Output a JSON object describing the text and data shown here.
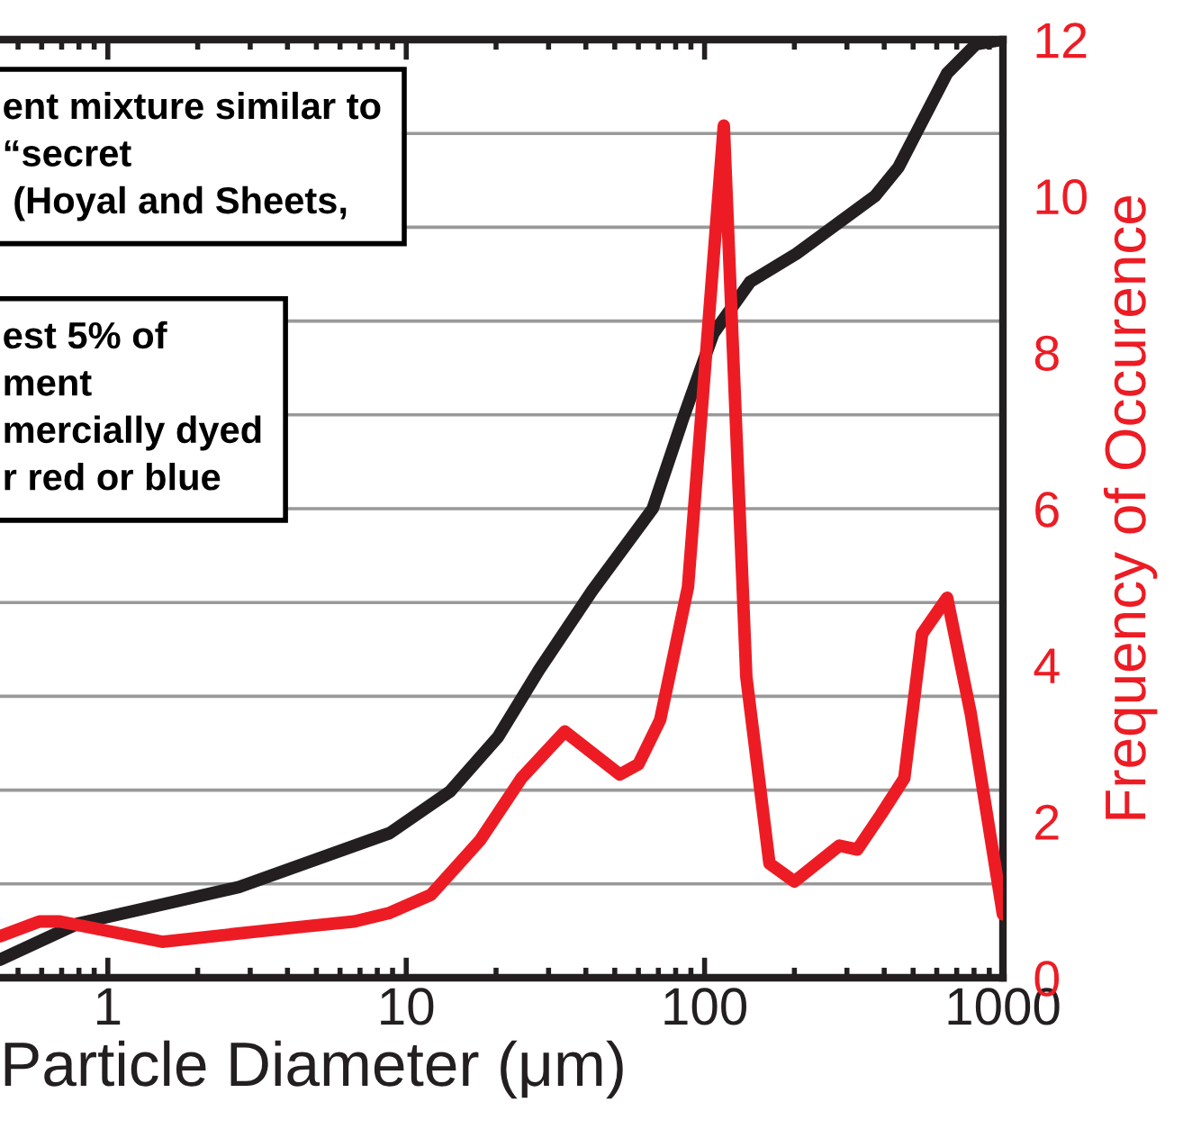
{
  "chart_data": {
    "type": "line",
    "xlabel": "Particle Diameter (μm)",
    "ylabel": "Frequency of Occurence",
    "series": [
      {
        "color": "#231f20",
        "x": [
          0.435,
          0.79,
          2.75,
          8.8,
          14,
          20.3,
          27.9,
          42,
          67,
          85,
          107,
          142,
          203,
          373,
          447,
          650,
          812,
          1000
        ],
        "values": [
          0.23,
          0.69,
          1.16,
          1.85,
          2.38,
          3.08,
          3.94,
          4.95,
          6.0,
          7.17,
          8.24,
          8.9,
          9.26,
          10.0,
          10.37,
          11.57,
          11.94,
          12
        ]
      },
      {
        "color": "#ed1c24",
        "x": [
          0.435,
          0.59,
          0.69,
          1.52,
          4.4,
          6.7,
          8.8,
          12.1,
          17.7,
          24.3,
          34,
          52,
          60,
          71,
          88,
          116,
          138,
          165,
          200,
          283,
          325,
          389,
          467,
          536,
          650,
          780,
          1000
        ],
        "values": [
          0.53,
          0.72,
          0.72,
          0.46,
          0.65,
          0.72,
          0.83,
          1.06,
          1.76,
          2.55,
          3.15,
          2.6,
          2.73,
          3.3,
          5.0,
          10.9,
          3.85,
          1.46,
          1.23,
          1.69,
          1.64,
          2.08,
          2.55,
          4.4,
          4.86,
          3.38,
          0.81
        ]
      }
    ],
    "log": "x",
    "xlim": [
      0.435,
      1000
    ],
    "xticks": [
      1,
      10,
      100,
      1000
    ],
    "ylim": [
      0,
      12
    ],
    "yticks": [
      0,
      2,
      4,
      6,
      8,
      10,
      12
    ],
    "ref_lines": [
      {
        "axis": "y",
        "value": 1.2,
        "color": "#999999"
      },
      {
        "axis": "y",
        "value": 2.4,
        "color": "#999999"
      },
      {
        "axis": "y",
        "value": 3.6,
        "color": "#999999"
      },
      {
        "axis": "y",
        "value": 4.8,
        "color": "#999999"
      },
      {
        "axis": "y",
        "value": 6.0,
        "color": "#999999"
      },
      {
        "axis": "y",
        "value": 7.2,
        "color": "#999999"
      },
      {
        "axis": "y",
        "value": 8.4,
        "color": "#999999"
      },
      {
        "axis": "y",
        "value": 9.6,
        "color": "#999999"
      },
      {
        "axis": "y",
        "value": 10.8,
        "color": "#999999"
      }
    ],
    "annotations": [
      "ent mixture similar to\n“secret\n (Hoyal and Sheets,",
      "est 5% of\nment\nmercially dyed\nr red or blue"
    ],
    "grid": false,
    "legend": false,
    "marker": "none",
    "line_style": "solid"
  }
}
